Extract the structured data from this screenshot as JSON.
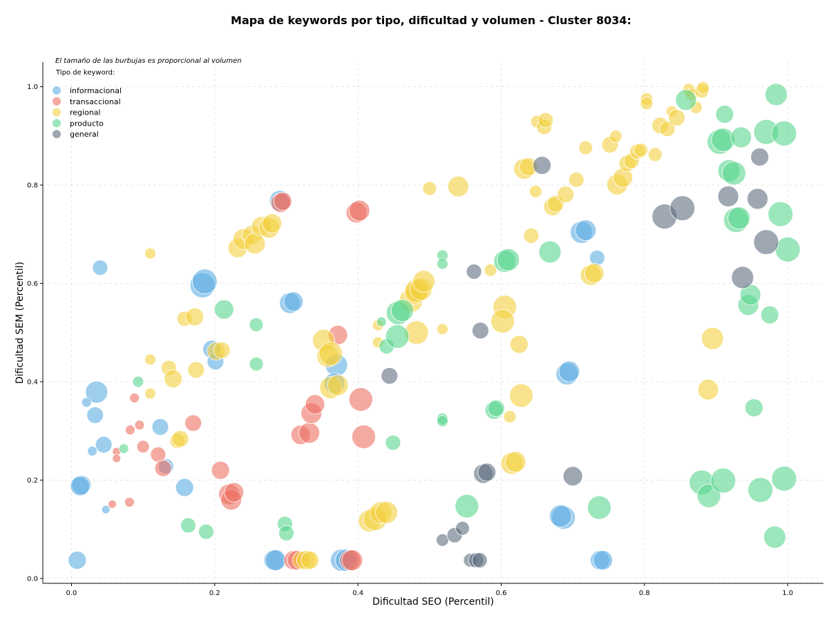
{
  "chart_data": {
    "type": "scatter",
    "title": "Mapa de keywords por tipo, dificultad y volumen - Cluster 8034:",
    "subtitle": "El tamaño de las burbujas es proporcional al volumen",
    "xlabel": "Dificultad SEO (Percentil)",
    "ylabel": "Dificultad SEM (Percentil)",
    "xlim": [
      -0.04,
      1.05
    ],
    "ylim": [
      -0.01,
      1.05
    ],
    "xticks": [
      0.0,
      0.2,
      0.4,
      0.6,
      0.8,
      1.0
    ],
    "yticks": [
      0.0,
      0.2,
      0.4,
      0.6,
      0.8,
      1.0
    ],
    "xtick_labels": [
      "0.0",
      "0.2",
      "0.4",
      "0.6",
      "0.8",
      "1.0"
    ],
    "ytick_labels": [
      "0.0",
      "0.2",
      "0.4",
      "0.6",
      "0.8",
      "1.0"
    ],
    "grid": true,
    "legend_title": "Tipo de keyword:",
    "legend_position": "top-left",
    "bubble_size_note": "volume",
    "series": [
      {
        "name": "informacional",
        "color": "#5DADE2",
        "points": [
          [
            0.04,
            0.632,
            11
          ],
          [
            0.035,
            0.379,
            16
          ],
          [
            0.033,
            0.332,
            12
          ],
          [
            0.045,
            0.272,
            12
          ],
          [
            0.029,
            0.259,
            7
          ],
          [
            0.021,
            0.358,
            7
          ],
          [
            0.048,
            0.14,
            6
          ],
          [
            0.008,
            0.037,
            13
          ],
          [
            0.014,
            0.19,
            14
          ],
          [
            0.012,
            0.188,
            14
          ],
          [
            0.124,
            0.308,
            12
          ],
          [
            0.132,
            0.228,
            11
          ],
          [
            0.158,
            0.185,
            13
          ],
          [
            0.183,
            0.596,
            18
          ],
          [
            0.186,
            0.604,
            18
          ],
          [
            0.196,
            0.466,
            13
          ],
          [
            0.201,
            0.441,
            12
          ],
          [
            0.291,
            0.768,
            15
          ],
          [
            0.305,
            0.56,
            15
          ],
          [
            0.31,
            0.563,
            14
          ],
          [
            0.283,
            0.037,
            15
          ],
          [
            0.285,
            0.037,
            15
          ],
          [
            0.37,
            0.434,
            16
          ],
          [
            0.367,
            0.397,
            15
          ],
          [
            0.377,
            0.037,
            16
          ],
          [
            0.384,
            0.037,
            16
          ],
          [
            0.687,
            0.124,
            17
          ],
          [
            0.683,
            0.127,
            16
          ],
          [
            0.692,
            0.416,
            16
          ],
          [
            0.695,
            0.421,
            15
          ],
          [
            0.712,
            0.704,
            16
          ],
          [
            0.718,
            0.708,
            15
          ],
          [
            0.734,
            0.652,
            11
          ],
          [
            0.738,
            0.037,
            14
          ],
          [
            0.742,
            0.037,
            14
          ]
        ]
      },
      {
        "name": "transaccional",
        "color": "#EC7063",
        "points": [
          [
            0.057,
            0.151,
            6
          ],
          [
            0.063,
            0.258,
            6
          ],
          [
            0.063,
            0.244,
            6
          ],
          [
            0.081,
            0.155,
            7
          ],
          [
            0.082,
            0.302,
            7
          ],
          [
            0.088,
            0.367,
            7
          ],
          [
            0.095,
            0.312,
            7
          ],
          [
            0.1,
            0.268,
            9
          ],
          [
            0.121,
            0.252,
            11
          ],
          [
            0.128,
            0.224,
            12
          ],
          [
            0.17,
            0.316,
            12
          ],
          [
            0.208,
            0.22,
            13
          ],
          [
            0.22,
            0.171,
            15
          ],
          [
            0.223,
            0.16,
            15
          ],
          [
            0.227,
            0.175,
            14
          ],
          [
            0.292,
            0.764,
            14
          ],
          [
            0.295,
            0.767,
            13
          ],
          [
            0.31,
            0.037,
            14
          ],
          [
            0.315,
            0.037,
            14
          ],
          [
            0.32,
            0.292,
            14
          ],
          [
            0.332,
            0.296,
            15
          ],
          [
            0.335,
            0.336,
            15
          ],
          [
            0.34,
            0.354,
            14
          ],
          [
            0.372,
            0.495,
            14
          ],
          [
            0.389,
            0.037,
            15
          ],
          [
            0.392,
            0.037,
            15
          ],
          [
            0.398,
            0.744,
            15
          ],
          [
            0.402,
            0.748,
            15
          ],
          [
            0.404,
            0.364,
            17
          ],
          [
            0.408,
            0.288,
            17
          ]
        ]
      },
      {
        "name": "regional",
        "color": "#F4D03F",
        "points": [
          [
            0.11,
            0.661,
            8
          ],
          [
            0.11,
            0.445,
            8
          ],
          [
            0.11,
            0.376,
            8
          ],
          [
            0.136,
            0.428,
            11
          ],
          [
            0.142,
            0.406,
            13
          ],
          [
            0.148,
            0.28,
            11
          ],
          [
            0.152,
            0.284,
            12
          ],
          [
            0.158,
            0.528,
            11
          ],
          [
            0.172,
            0.532,
            13
          ],
          [
            0.174,
            0.424,
            12
          ],
          [
            0.202,
            0.462,
            13
          ],
          [
            0.21,
            0.464,
            12
          ],
          [
            0.232,
            0.672,
            14
          ],
          [
            0.24,
            0.69,
            15
          ],
          [
            0.252,
            0.698,
            14
          ],
          [
            0.256,
            0.681,
            15
          ],
          [
            0.265,
            0.716,
            14
          ],
          [
            0.276,
            0.713,
            15
          ],
          [
            0.28,
            0.722,
            14
          ],
          [
            0.321,
            0.037,
            13
          ],
          [
            0.328,
            0.037,
            14
          ],
          [
            0.333,
            0.037,
            13
          ],
          [
            0.352,
            0.484,
            16
          ],
          [
            0.358,
            0.452,
            16
          ],
          [
            0.362,
            0.457,
            17
          ],
          [
            0.362,
            0.388,
            16
          ],
          [
            0.372,
            0.393,
            15
          ],
          [
            0.416,
            0.117,
            16
          ],
          [
            0.424,
            0.121,
            17
          ],
          [
            0.432,
            0.134,
            16
          ],
          [
            0.44,
            0.134,
            16
          ],
          [
            0.428,
            0.515,
            8
          ],
          [
            0.428,
            0.48,
            8
          ],
          [
            0.474,
            0.565,
            17
          ],
          [
            0.48,
            0.58,
            16
          ],
          [
            0.482,
            0.585,
            17
          ],
          [
            0.488,
            0.588,
            16
          ],
          [
            0.482,
            0.5,
            17
          ],
          [
            0.492,
            0.604,
            16
          ],
          [
            0.5,
            0.793,
            10
          ],
          [
            0.518,
            0.507,
            8
          ],
          [
            0.54,
            0.797,
            15
          ],
          [
            0.585,
            0.627,
            9
          ],
          [
            0.605,
            0.552,
            17
          ],
          [
            0.602,
            0.523,
            17
          ],
          [
            0.612,
            0.329,
            9
          ],
          [
            0.615,
            0.234,
            16
          ],
          [
            0.62,
            0.237,
            15
          ],
          [
            0.625,
            0.476,
            13
          ],
          [
            0.628,
            0.372,
            17
          ],
          [
            0.632,
            0.833,
            15
          ],
          [
            0.638,
            0.837,
            13
          ],
          [
            0.642,
            0.697,
            11
          ],
          [
            0.648,
            0.787,
            9
          ],
          [
            0.65,
            0.929,
            9
          ],
          [
            0.66,
            0.918,
            11
          ],
          [
            0.662,
            0.932,
            11
          ],
          [
            0.672,
            0.756,
            13
          ],
          [
            0.676,
            0.762,
            12
          ],
          [
            0.69,
            0.781,
            12
          ],
          [
            0.705,
            0.811,
            11
          ],
          [
            0.718,
            0.876,
            10
          ],
          [
            0.725,
            0.617,
            15
          ],
          [
            0.73,
            0.621,
            14
          ],
          [
            0.752,
            0.882,
            12
          ],
          [
            0.76,
            0.899,
            9
          ],
          [
            0.762,
            0.801,
            15
          ],
          [
            0.77,
            0.815,
            14
          ],
          [
            0.776,
            0.844,
            12
          ],
          [
            0.782,
            0.849,
            11
          ],
          [
            0.79,
            0.868,
            11
          ],
          [
            0.795,
            0.871,
            10
          ],
          [
            0.803,
            0.975,
            9
          ],
          [
            0.803,
            0.966,
            9
          ],
          [
            0.815,
            0.862,
            10
          ],
          [
            0.822,
            0.921,
            12
          ],
          [
            0.832,
            0.914,
            11
          ],
          [
            0.838,
            0.95,
            8
          ],
          [
            0.845,
            0.937,
            12
          ],
          [
            0.862,
            0.994,
            9
          ],
          [
            0.866,
            0.984,
            9
          ],
          [
            0.872,
            0.958,
            9
          ],
          [
            0.88,
            0.991,
            10
          ],
          [
            0.882,
            0.998,
            9
          ],
          [
            0.889,
            0.384,
            15
          ],
          [
            0.895,
            0.488,
            16
          ]
        ]
      },
      {
        "name": "producto",
        "color": "#58D68D",
        "points": [
          [
            0.073,
            0.264,
            7
          ],
          [
            0.093,
            0.4,
            8
          ],
          [
            0.163,
            0.108,
            11
          ],
          [
            0.188,
            0.095,
            11
          ],
          [
            0.213,
            0.547,
            14
          ],
          [
            0.258,
            0.516,
            10
          ],
          [
            0.258,
            0.436,
            10
          ],
          [
            0.298,
            0.111,
            11
          ],
          [
            0.3,
            0.092,
            11
          ],
          [
            0.433,
            0.522,
            7
          ],
          [
            0.44,
            0.472,
            11
          ],
          [
            0.449,
            0.276,
            11
          ],
          [
            0.456,
            0.54,
            17
          ],
          [
            0.462,
            0.545,
            16
          ],
          [
            0.455,
            0.492,
            17
          ],
          [
            0.518,
            0.657,
            8
          ],
          [
            0.518,
            0.64,
            8
          ],
          [
            0.518,
            0.325,
            8
          ],
          [
            0.518,
            0.32,
            8
          ],
          [
            0.552,
            0.147,
            17
          ],
          [
            0.59,
            0.342,
            13
          ],
          [
            0.593,
            0.346,
            12
          ],
          [
            0.605,
            0.645,
            16
          ],
          [
            0.61,
            0.648,
            16
          ],
          [
            0.668,
            0.664,
            16
          ],
          [
            0.737,
            0.144,
            17
          ],
          [
            0.858,
            0.973,
            15
          ],
          [
            0.88,
            0.195,
            18
          ],
          [
            0.89,
            0.168,
            17
          ],
          [
            0.905,
            0.888,
            18
          ],
          [
            0.91,
            0.892,
            17
          ],
          [
            0.91,
            0.199,
            18
          ],
          [
            0.912,
            0.944,
            13
          ],
          [
            0.918,
            0.829,
            16
          ],
          [
            0.925,
            0.824,
            17
          ],
          [
            0.928,
            0.729,
            18
          ],
          [
            0.932,
            0.733,
            16
          ],
          [
            0.935,
            0.897,
            15
          ],
          [
            0.945,
            0.556,
            15
          ],
          [
            0.948,
            0.577,
            15
          ],
          [
            0.953,
            0.347,
            13
          ],
          [
            0.962,
            0.18,
            18
          ],
          [
            0.97,
            0.908,
            18
          ],
          [
            0.975,
            0.536,
            13
          ],
          [
            0.982,
            0.084,
            16
          ],
          [
            0.984,
            0.984,
            16
          ],
          [
            0.99,
            0.741,
            18
          ],
          [
            0.995,
            0.905,
            18
          ],
          [
            0.995,
            0.203,
            18
          ],
          [
            1.0,
            0.669,
            18
          ]
        ]
      },
      {
        "name": "general",
        "color": "#5D6D7E",
        "points": [
          [
            0.444,
            0.412,
            12
          ],
          [
            0.518,
            0.078,
            9
          ],
          [
            0.535,
            0.088,
            11
          ],
          [
            0.546,
            0.102,
            10
          ],
          [
            0.557,
            0.037,
            10
          ],
          [
            0.565,
            0.037,
            11
          ],
          [
            0.57,
            0.037,
            11
          ],
          [
            0.562,
            0.624,
            11
          ],
          [
            0.571,
            0.504,
            12
          ],
          [
            0.575,
            0.213,
            14
          ],
          [
            0.58,
            0.216,
            13
          ],
          [
            0.657,
            0.84,
            13
          ],
          [
            0.7,
            0.208,
            14
          ],
          [
            0.828,
            0.736,
            18
          ],
          [
            0.853,
            0.753,
            18
          ],
          [
            0.917,
            0.777,
            15
          ],
          [
            0.937,
            0.612,
            16
          ],
          [
            0.958,
            0.772,
            15
          ],
          [
            0.961,
            0.857,
            13
          ],
          [
            0.97,
            0.684,
            18
          ]
        ]
      }
    ]
  }
}
